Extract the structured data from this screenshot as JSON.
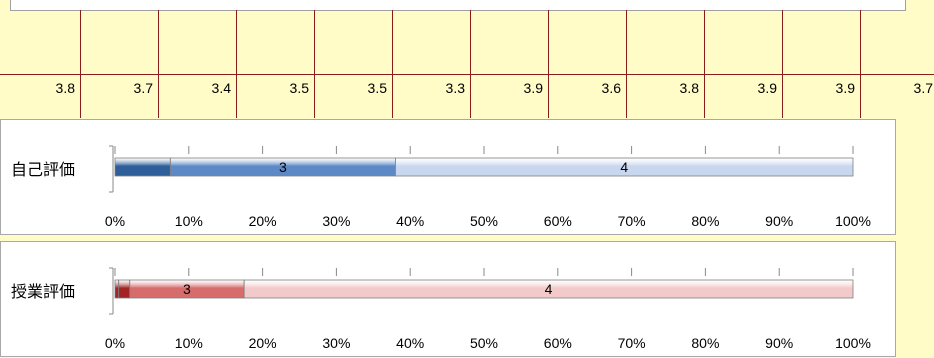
{
  "scores": [
    "3.8",
    "3.7",
    "3.4",
    "3.5",
    "3.5",
    "3.3",
    "3.9",
    "3.6",
    "3.8",
    "3.9",
    "3.9",
    "3.7"
  ],
  "colors": {
    "background": "#fffcc8",
    "grid_line": "#8b1c1c",
    "self_dark": "#2f5f9a",
    "self_mid": "#5d8ac6",
    "self_light": "#c9d7ee",
    "class_dark": "#a22424",
    "class_mid": "#d66c6c",
    "class_light": "#f3caca"
  },
  "chart_data": [
    {
      "type": "bar",
      "orientation": "horizontal",
      "stacked": "percent",
      "categories": [
        "自己評価"
      ],
      "series": [
        {
          "values": [
            7.5
          ]
        },
        {
          "name": "3",
          "values": [
            30.5
          ]
        },
        {
          "name": "4",
          "values": [
            62
          ]
        }
      ],
      "xlim": [
        0,
        100
      ],
      "x_ticks": [
        "0%",
        "10%",
        "20%",
        "30%",
        "40%",
        "50%",
        "60%",
        "70%",
        "80%",
        "90%",
        "100%"
      ]
    },
    {
      "type": "bar",
      "orientation": "horizontal",
      "stacked": "percent",
      "categories": [
        "授業評価"
      ],
      "series": [
        {
          "values": [
            0.5
          ]
        },
        {
          "values": [
            1.5
          ]
        },
        {
          "name": "3",
          "values": [
            15.5
          ]
        },
        {
          "name": "4",
          "values": [
            82.5
          ]
        }
      ],
      "xlim": [
        0,
        100
      ],
      "x_ticks": [
        "0%",
        "10%",
        "20%",
        "30%",
        "40%",
        "50%",
        "60%",
        "70%",
        "80%",
        "90%",
        "100%"
      ]
    }
  ]
}
